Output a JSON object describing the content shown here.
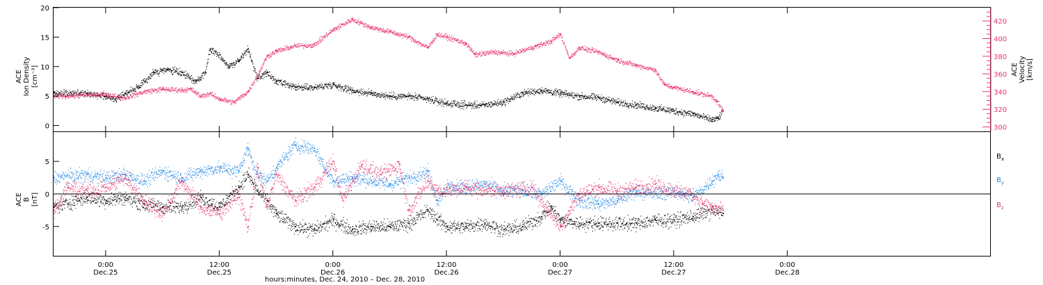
{
  "colors": {
    "black": "#000000",
    "pink": "#e8336b",
    "blue": "#1f86e8"
  },
  "time": {
    "t0": "2010-12-24T18:30",
    "t1": "2010-12-28T21:30",
    "data_end": "2010-12-27T17:10"
  },
  "xaxis": {
    "ticks": [
      {
        "time": "2010-12-25T00:00",
        "l1": "0:00",
        "l2": "Dec.25"
      },
      {
        "time": "2010-12-25T12:00",
        "l1": "12:00",
        "l2": "Dec.25"
      },
      {
        "time": "2010-12-26T00:00",
        "l1": "0:00",
        "l2": "Dec.26"
      },
      {
        "time": "2010-12-26T12:00",
        "l1": "12:00",
        "l2": "Dec.26"
      },
      {
        "time": "2010-12-27T00:00",
        "l1": "0:00",
        "l2": "Dec.27"
      },
      {
        "time": "2010-12-27T12:00",
        "l1": "12:00",
        "l2": "Dec.27"
      },
      {
        "time": "2010-12-28T00:00",
        "l1": "0:00",
        "l2": "Dec.28"
      }
    ],
    "label": "hours:minutes, Dec. 24, 2010 – Dec. 28, 2010"
  },
  "chart_data": [
    {
      "type": "scatter",
      "ylabel_left": [
        "ACE",
        "Ion Density",
        "[cm⁻³]"
      ],
      "ylabel_right": [
        "ACE",
        "Velocity",
        "[km/s]"
      ],
      "left_ylim": [
        -1,
        20
      ],
      "left_ticks": [
        0,
        5,
        10,
        15,
        20
      ],
      "right_ylim": [
        295,
        435
      ],
      "right_ticks": [
        300,
        320,
        340,
        360,
        380,
        400,
        420
      ],
      "series": [
        {
          "key": "density",
          "axis": "left",
          "color": "black",
          "noise": 0.5,
          "points": [
            [
              "2010-12-24T18:30",
              5.5
            ],
            [
              "2010-12-24T22:00",
              5.5
            ],
            [
              "2010-12-25T00:00",
              5.0
            ],
            [
              "2010-12-25T01:00",
              4.5
            ],
            [
              "2010-12-25T02:00",
              5.5
            ],
            [
              "2010-12-25T03:30",
              6.5
            ],
            [
              "2010-12-25T05:00",
              9.0
            ],
            [
              "2010-12-25T06:30",
              9.5
            ],
            [
              "2010-12-25T08:00",
              9.0
            ],
            [
              "2010-12-25T09:30",
              7.5
            ],
            [
              "2010-12-25T10:30",
              9.0
            ],
            [
              "2010-12-25T11:00",
              13.0
            ],
            [
              "2010-12-25T12:00",
              12.0
            ],
            [
              "2010-12-25T13:00",
              10.0
            ],
            [
              "2010-12-25T14:00",
              11.0
            ],
            [
              "2010-12-25T15:00",
              13.0
            ],
            [
              "2010-12-25T16:00",
              8.0
            ],
            [
              "2010-12-25T17:00",
              9.0
            ],
            [
              "2010-12-25T18:00",
              7.5
            ],
            [
              "2010-12-25T20:00",
              6.5
            ],
            [
              "2010-12-25T22:00",
              6.5
            ],
            [
              "2010-12-26T00:00",
              7.0
            ],
            [
              "2010-12-26T02:00",
              6.0
            ],
            [
              "2010-12-26T04:00",
              5.5
            ],
            [
              "2010-12-26T06:00",
              5.0
            ],
            [
              "2010-12-26T08:00",
              5.0
            ],
            [
              "2010-12-26T10:00",
              4.5
            ],
            [
              "2010-12-26T12:00",
              3.8
            ],
            [
              "2010-12-26T14:00",
              3.5
            ],
            [
              "2010-12-26T16:00",
              3.5
            ],
            [
              "2010-12-26T18:00",
              4.0
            ],
            [
              "2010-12-26T20:00",
              5.5
            ],
            [
              "2010-12-26T22:00",
              6.0
            ],
            [
              "2010-12-27T00:00",
              5.5
            ],
            [
              "2010-12-27T02:00",
              5.0
            ],
            [
              "2010-12-27T04:00",
              4.8
            ],
            [
              "2010-12-27T06:00",
              4.0
            ],
            [
              "2010-12-27T08:00",
              3.5
            ],
            [
              "2010-12-27T10:00",
              3.0
            ],
            [
              "2010-12-27T12:00",
              2.5
            ],
            [
              "2010-12-27T14:00",
              2.0
            ],
            [
              "2010-12-27T16:00",
              1.0
            ],
            [
              "2010-12-27T16:40",
              1.2
            ],
            [
              "2010-12-27T17:10",
              2.5
            ]
          ]
        },
        {
          "key": "velocity",
          "axis": "right",
          "color": "pink",
          "noise": 2.5,
          "points": [
            [
              "2010-12-24T18:30",
              335
            ],
            [
              "2010-12-25T00:00",
              337
            ],
            [
              "2010-12-25T02:00",
              333
            ],
            [
              "2010-12-25T04:00",
              340
            ],
            [
              "2010-12-25T06:00",
              343
            ],
            [
              "2010-12-25T08:00",
              342
            ],
            [
              "2010-12-25T09:00",
              343
            ],
            [
              "2010-12-25T10:00",
              335
            ],
            [
              "2010-12-25T11:00",
              338
            ],
            [
              "2010-12-25T12:00",
              332
            ],
            [
              "2010-12-25T13:30",
              328
            ],
            [
              "2010-12-25T15:00",
              340
            ],
            [
              "2010-12-25T16:00",
              358
            ],
            [
              "2010-12-25T17:00",
              380
            ],
            [
              "2010-12-25T18:00",
              386
            ],
            [
              "2010-12-25T20:00",
              392
            ],
            [
              "2010-12-25T22:00",
              393
            ],
            [
              "2010-12-26T00:00",
              410
            ],
            [
              "2010-12-26T02:00",
              422
            ],
            [
              "2010-12-26T04:00",
              413
            ],
            [
              "2010-12-26T06:00",
              408
            ],
            [
              "2010-12-26T08:00",
              402
            ],
            [
              "2010-12-26T10:00",
              390
            ],
            [
              "2010-12-26T11:00",
              405
            ],
            [
              "2010-12-26T12:00",
              402
            ],
            [
              "2010-12-26T14:00",
              395
            ],
            [
              "2010-12-26T15:00",
              382
            ],
            [
              "2010-12-26T17:00",
              385
            ],
            [
              "2010-12-26T19:00",
              383
            ],
            [
              "2010-12-26T21:00",
              390
            ],
            [
              "2010-12-26T23:00",
              397
            ],
            [
              "2010-12-27T00:00",
              405
            ],
            [
              "2010-12-27T01:00",
              378
            ],
            [
              "2010-12-27T02:00",
              390
            ],
            [
              "2010-12-27T04:00",
              385
            ],
            [
              "2010-12-27T06:00",
              376
            ],
            [
              "2010-12-27T08:00",
              370
            ],
            [
              "2010-12-27T10:00",
              365
            ],
            [
              "2010-12-27T11:00",
              348
            ],
            [
              "2010-12-27T12:00",
              345
            ],
            [
              "2010-12-27T14:00",
              340
            ],
            [
              "2010-12-27T16:00",
              335
            ],
            [
              "2010-12-27T16:30",
              330
            ],
            [
              "2010-12-27T17:10",
              318
            ]
          ]
        }
      ]
    },
    {
      "type": "scatter",
      "ylabel_left": [
        "ACE",
        "B",
        "[nT]"
      ],
      "ylim": [
        -9.5,
        9.5
      ],
      "ticks": [
        -5,
        0,
        5
      ],
      "zero_line": true,
      "legend": [
        {
          "label": "B",
          "sub": "x",
          "color": "black"
        },
        {
          "label": "B",
          "sub": "y",
          "color": "blue"
        },
        {
          "label": "B",
          "sub": "z",
          "color": "pink"
        }
      ],
      "series": [
        {
          "key": "bx",
          "color": "black",
          "noise": 0.9,
          "points": [
            [
              "2010-12-24T18:30",
              -2.0
            ],
            [
              "2010-12-24T22:00",
              -0.5
            ],
            [
              "2010-12-25T00:00",
              -1.0
            ],
            [
              "2010-12-25T02:00",
              -0.5
            ],
            [
              "2010-12-25T04:00",
              -1.5
            ],
            [
              "2010-12-25T06:00",
              -2.0
            ],
            [
              "2010-12-25T08:00",
              -2.0
            ],
            [
              "2010-12-25T10:00",
              -0.5
            ],
            [
              "2010-12-25T12:00",
              -2.0
            ],
            [
              "2010-12-25T14:00",
              1.0
            ],
            [
              "2010-12-25T15:00",
              3.0
            ],
            [
              "2010-12-25T16:00",
              0.5
            ],
            [
              "2010-12-25T17:00",
              -1.0
            ],
            [
              "2010-12-25T18:00",
              -3.0
            ],
            [
              "2010-12-25T20:00",
              -5.0
            ],
            [
              "2010-12-25T22:00",
              -5.5
            ],
            [
              "2010-12-26T00:00",
              -4.0
            ],
            [
              "2010-12-26T02:00",
              -5.5
            ],
            [
              "2010-12-26T04:00",
              -5.0
            ],
            [
              "2010-12-26T06:00",
              -5.0
            ],
            [
              "2010-12-26T08:00",
              -4.5
            ],
            [
              "2010-12-26T10:00",
              -2.5
            ],
            [
              "2010-12-26T12:00",
              -5.0
            ],
            [
              "2010-12-26T14:00",
              -5.0
            ],
            [
              "2010-12-26T16:00",
              -4.5
            ],
            [
              "2010-12-26T18:00",
              -5.5
            ],
            [
              "2010-12-26T20:00",
              -5.0
            ],
            [
              "2010-12-26T22:00",
              -3.5
            ],
            [
              "2010-12-26T23:00",
              -2.0
            ],
            [
              "2010-12-27T00:00",
              -4.0
            ],
            [
              "2010-12-27T02:00",
              -4.5
            ],
            [
              "2010-12-27T04:00",
              -4.5
            ],
            [
              "2010-12-27T06:00",
              -4.5
            ],
            [
              "2010-12-27T08:00",
              -4.5
            ],
            [
              "2010-12-27T10:00",
              -4.0
            ],
            [
              "2010-12-27T12:00",
              -4.0
            ],
            [
              "2010-12-27T14:00",
              -3.5
            ],
            [
              "2010-12-27T16:00",
              -2.5
            ],
            [
              "2010-12-27T17:10",
              -3.0
            ]
          ]
        },
        {
          "key": "by",
          "color": "blue",
          "noise": 0.9,
          "points": [
            [
              "2010-12-24T18:30",
              2.5
            ],
            [
              "2010-12-24T22:00",
              3.0
            ],
            [
              "2010-12-25T00:00",
              2.5
            ],
            [
              "2010-12-25T02:00",
              3.0
            ],
            [
              "2010-12-25T04:00",
              2.0
            ],
            [
              "2010-12-25T06:00",
              3.5
            ],
            [
              "2010-12-25T08:00",
              2.5
            ],
            [
              "2010-12-25T10:00",
              3.5
            ],
            [
              "2010-12-25T12:00",
              4.0
            ],
            [
              "2010-12-25T14:00",
              3.5
            ],
            [
              "2010-12-25T15:00",
              7.0
            ],
            [
              "2010-12-25T16:00",
              3.0
            ],
            [
              "2010-12-25T17:00",
              2.0
            ],
            [
              "2010-12-25T18:00",
              4.0
            ],
            [
              "2010-12-25T20:00",
              7.5
            ],
            [
              "2010-12-25T22:00",
              7.0
            ],
            [
              "2010-12-26T00:00",
              2.0
            ],
            [
              "2010-12-26T02:00",
              2.5
            ],
            [
              "2010-12-26T04:00",
              2.0
            ],
            [
              "2010-12-26T06:00",
              1.5
            ],
            [
              "2010-12-26T08:00",
              2.5
            ],
            [
              "2010-12-26T10:00",
              3.5
            ],
            [
              "2010-12-26T11:00",
              -1.0
            ],
            [
              "2010-12-26T12:00",
              1.0
            ],
            [
              "2010-12-26T14:00",
              1.0
            ],
            [
              "2010-12-26T16:00",
              1.5
            ],
            [
              "2010-12-26T18:00",
              0.5
            ],
            [
              "2010-12-26T20:00",
              0.5
            ],
            [
              "2010-12-26T22:00",
              0.0
            ],
            [
              "2010-12-27T00:00",
              2.0
            ],
            [
              "2010-12-27T02:00",
              -1.0
            ],
            [
              "2010-12-27T04:00",
              -1.5
            ],
            [
              "2010-12-27T06:00",
              -1.0
            ],
            [
              "2010-12-27T08:00",
              0.5
            ],
            [
              "2010-12-27T10:00",
              0.0
            ],
            [
              "2010-12-27T12:00",
              0.5
            ],
            [
              "2010-12-27T14:00",
              -0.5
            ],
            [
              "2010-12-27T16:00",
              2.0
            ],
            [
              "2010-12-27T16:40",
              3.0
            ],
            [
              "2010-12-27T17:10",
              2.5
            ]
          ]
        },
        {
          "key": "bz",
          "color": "pink",
          "noise": 1.0,
          "points": [
            [
              "2010-12-24T18:30",
              -2.5
            ],
            [
              "2010-12-24T20:00",
              1.0
            ],
            [
              "2010-12-24T22:00",
              0.5
            ],
            [
              "2010-12-25T00:00",
              1.0
            ],
            [
              "2010-12-25T02:00",
              2.5
            ],
            [
              "2010-12-25T04:00",
              -1.0
            ],
            [
              "2010-12-25T06:00",
              -3.0
            ],
            [
              "2010-12-25T08:00",
              2.0
            ],
            [
              "2010-12-25T10:00",
              -2.0
            ],
            [
              "2010-12-25T12:00",
              -3.0
            ],
            [
              "2010-12-25T14:00",
              0.0
            ],
            [
              "2010-12-25T15:00",
              -5.0
            ],
            [
              "2010-12-25T16:00",
              4.0
            ],
            [
              "2010-12-25T17:00",
              -2.0
            ],
            [
              "2010-12-25T18:00",
              3.0
            ],
            [
              "2010-12-25T20:00",
              -1.0
            ],
            [
              "2010-12-25T22:00",
              1.0
            ],
            [
              "2010-12-26T00:00",
              5.0
            ],
            [
              "2010-12-26T01:00",
              -1.0
            ],
            [
              "2010-12-26T03:00",
              4.5
            ],
            [
              "2010-12-26T05:00",
              3.0
            ],
            [
              "2010-12-26T07:00",
              4.5
            ],
            [
              "2010-12-26T08:00",
              -2.5
            ],
            [
              "2010-12-26T10:00",
              2.0
            ],
            [
              "2010-12-26T11:00",
              0.5
            ],
            [
              "2010-12-26T14:00",
              1.0
            ],
            [
              "2010-12-26T18:00",
              0.5
            ],
            [
              "2010-12-26T21:00",
              1.0
            ],
            [
              "2010-12-26T23:00",
              -3.0
            ],
            [
              "2010-12-27T00:00",
              -5.0
            ],
            [
              "2010-12-27T02:00",
              0.0
            ],
            [
              "2010-12-27T04:00",
              1.0
            ],
            [
              "2010-12-27T06:00",
              0.5
            ],
            [
              "2010-12-27T08:00",
              1.0
            ],
            [
              "2010-12-27T10:00",
              1.5
            ],
            [
              "2010-12-27T12:00",
              0.5
            ],
            [
              "2010-12-27T14:00",
              0.0
            ],
            [
              "2010-12-27T15:00",
              -1.5
            ],
            [
              "2010-12-27T16:00",
              -2.0
            ],
            [
              "2010-12-27T17:10",
              -2.5
            ]
          ]
        }
      ]
    }
  ]
}
